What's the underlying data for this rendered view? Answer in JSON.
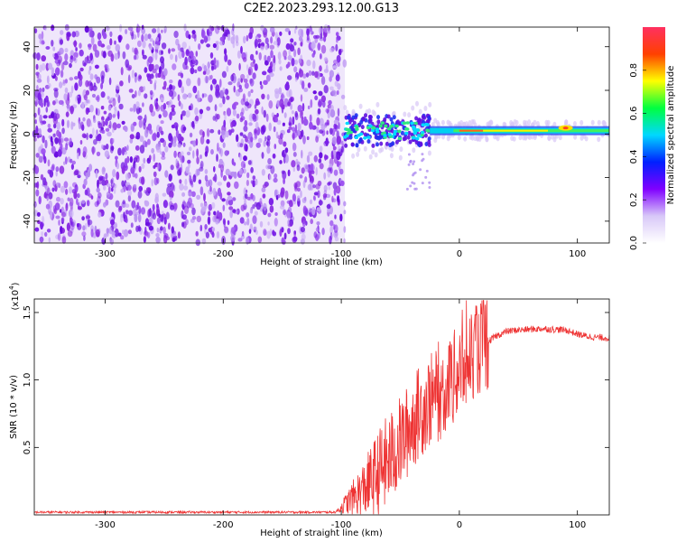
{
  "title": "C2E2.2023.293.12.00.G13",
  "chart_data": [
    {
      "type": "heatmap",
      "xlabel": "Height of straight line (km)",
      "ylabel": "Frequency (Hz)",
      "xlim": [
        -360,
        127
      ],
      "ylim": [
        -50,
        49
      ],
      "x_ticks": [
        -300,
        -200,
        -100,
        0,
        100
      ],
      "y_ticks": [
        -40,
        -20,
        0,
        20,
        40
      ],
      "noise_region_x": [
        -360,
        -97
      ],
      "signal_region_x": [
        -97,
        127
      ],
      "signal_center_frequency_hz": 1.5,
      "colorbar": {
        "label": "Normalized spectral amplitude",
        "range": [
          0.0,
          1.0
        ],
        "ticks": [
          0.0,
          0.2,
          0.4,
          0.6,
          0.8
        ],
        "colors": [
          "#ffffff",
          "#d8c8f8",
          "#8000ff",
          "#0020ff",
          "#00d8ff",
          "#00ff40",
          "#ffff00",
          "#ff4000",
          "#ff3060"
        ]
      }
    },
    {
      "type": "line",
      "xlabel": "Height of straight line (km)",
      "ylabel": "SNR (10 * v/v)",
      "y_multiplier": "(x10",
      "y_multiplier_exp": "4",
      "y_multiplier_close": ")",
      "xlim": [
        -360,
        127
      ],
      "ylim": [
        0,
        1.6
      ],
      "x_ticks": [
        -300,
        -200,
        -100,
        0,
        100
      ],
      "y_ticks": [
        0.5,
        1.0,
        1.5
      ],
      "y_tick_labels": [
        "0.5",
        "1.0",
        "1.5"
      ],
      "line_color": "#ee3333",
      "series": [
        {
          "x": [
            -360,
            -300,
            -200,
            -105,
            -80,
            -60,
            -45,
            -35,
            -25,
            -15,
            -8,
            0,
            5,
            10,
            20,
            30,
            40,
            50,
            70,
            90,
            100,
            110,
            127
          ],
          "y": [
            0.02,
            0.02,
            0.02,
            0.02,
            0.2,
            0.4,
            0.6,
            0.75,
            0.85,
            0.9,
            1.0,
            1.05,
            1.1,
            1.2,
            1.25,
            1.32,
            1.36,
            1.37,
            1.38,
            1.37,
            1.34,
            1.32,
            1.31
          ]
        }
      ]
    }
  ]
}
